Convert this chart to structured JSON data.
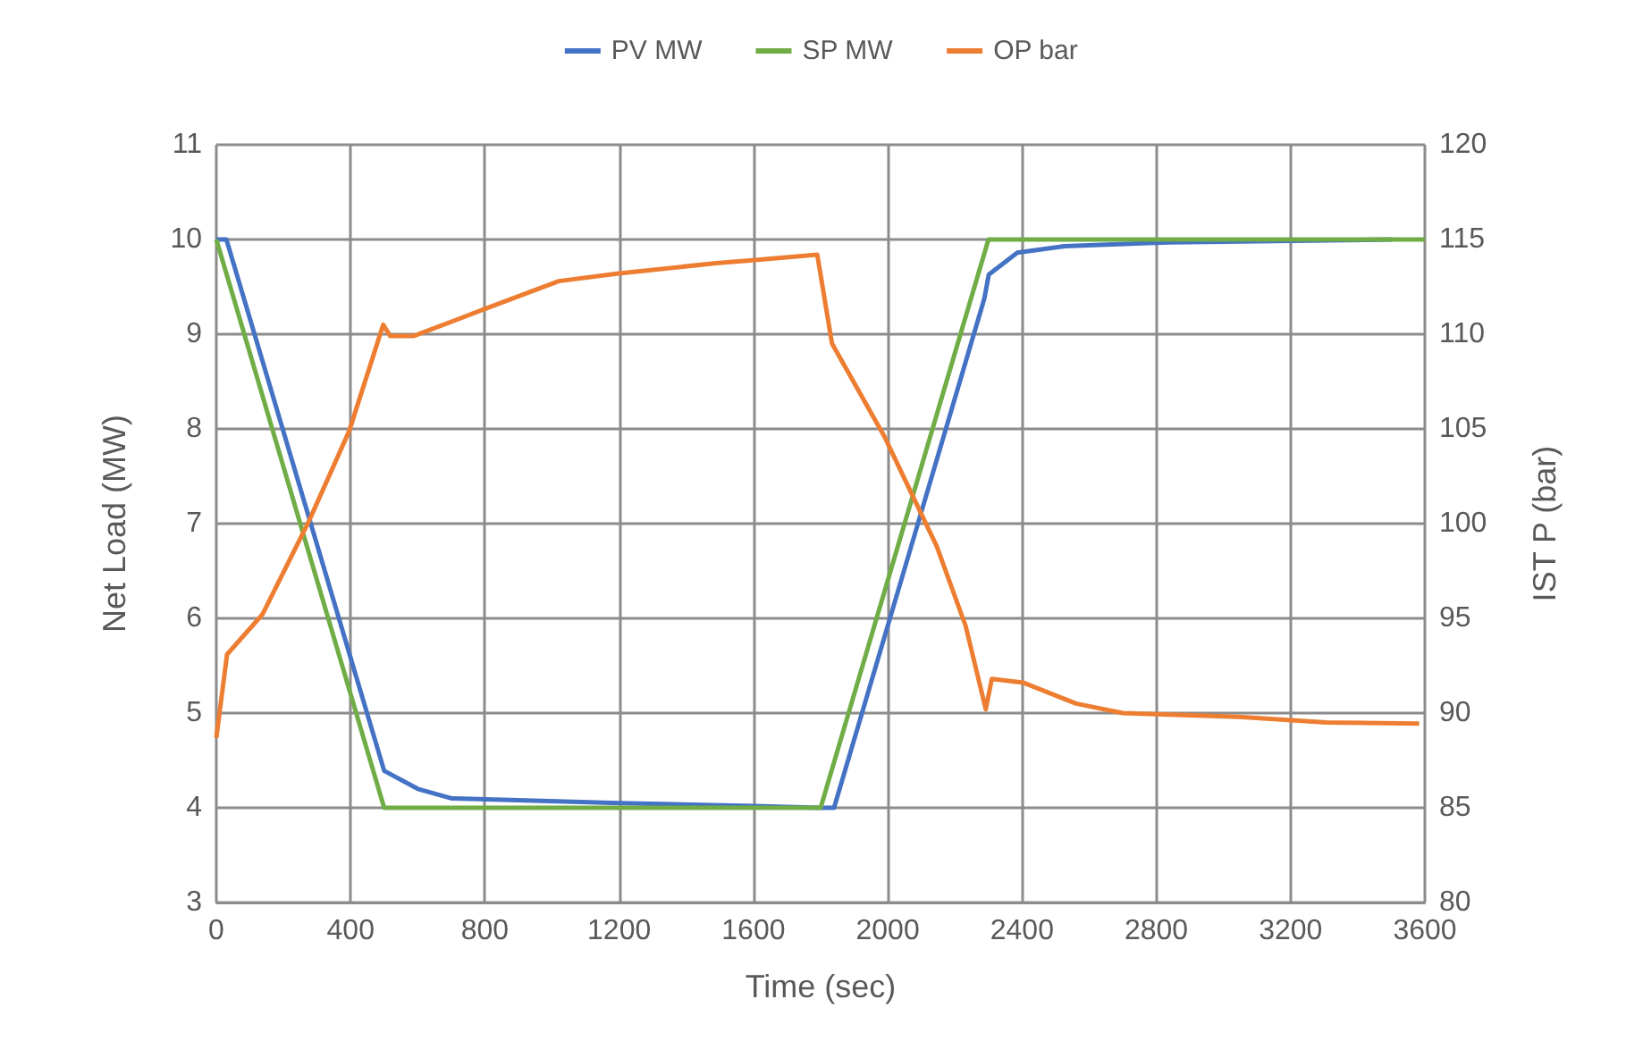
{
  "chart_data": {
    "type": "line",
    "xlabel": "Time (sec)",
    "ylabel": "Net Load (MW)",
    "y2label": "IST P (bar)",
    "xlim": [
      0,
      3600
    ],
    "xticks": [
      0,
      400,
      800,
      1200,
      1600,
      2000,
      2400,
      2800,
      3200,
      3600
    ],
    "ylim": [
      3,
      11
    ],
    "yticks": [
      3,
      4,
      5,
      6,
      7,
      8,
      9,
      10,
      11
    ],
    "y2lim": [
      80,
      120
    ],
    "y2ticks": [
      80,
      85,
      90,
      95,
      100,
      105,
      110,
      115,
      120
    ],
    "grid": true,
    "legend": "top",
    "marker": "none",
    "line_style": "solid",
    "series": [
      {
        "name": "PV MW",
        "color": "#4472c4",
        "x": [
          0,
          30,
          500,
          600,
          700,
          900,
          1200,
          1600,
          1800,
          1840,
          2288,
          2301,
          2386,
          2527,
          2840,
          3503
        ],
        "values": [
          10,
          10,
          4.39,
          4.2,
          4.1,
          4.08,
          4.05,
          4.02,
          4,
          4,
          9.38,
          9.63,
          9.86,
          9.93,
          9.97,
          10
        ]
      },
      {
        "name": "SP MW",
        "color": "#70ad47",
        "x": [
          0,
          500,
          1800,
          2300,
          3600
        ],
        "values": [
          10,
          4,
          4,
          10,
          10
        ]
      },
      {
        "name": "OP bar",
        "color": "#ed7d31",
        "axis": "y2",
        "x": [
          0,
          32,
          137,
          275,
          396,
          497,
          518,
          587,
          795,
          1020,
          1193,
          1489,
          1597,
          1790,
          1834,
          1990,
          2146,
          2232,
          2292,
          2310,
          2405,
          2561,
          2700,
          3046,
          3306,
          3583
        ],
        "values": [
          88.7,
          93.1,
          95.2,
          100.1,
          104.9,
          110.5,
          109.9,
          109.9,
          111.3,
          112.8,
          113.2,
          113.75,
          113.9,
          114.2,
          109.5,
          104.6,
          98.8,
          94.6,
          90.2,
          91.8,
          91.6,
          90.5,
          90,
          89.8,
          89.5,
          89.45
        ]
      }
    ]
  }
}
